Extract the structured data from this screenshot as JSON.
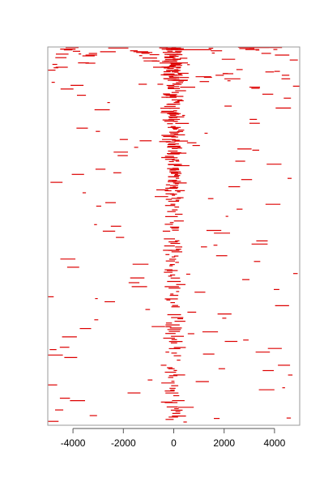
{
  "chart_data": {
    "type": "segment-heatmap",
    "title": "",
    "xlabel": "",
    "ylabel": "",
    "xlim": [
      -5000,
      5000
    ],
    "ylim": [
      0,
      220
    ],
    "xticks": [
      -4000,
      -2000,
      0,
      2000,
      4000
    ],
    "xtick_labels": [
      "-4000",
      "-2000",
      "0",
      "2000",
      "4000"
    ],
    "grid": false,
    "legend": "none",
    "row_count": 220,
    "central_peak": {
      "center": 0,
      "spread": 350
    },
    "segment_length_range": [
      100,
      1200
    ],
    "colors": {
      "segment": "#dd0000",
      "frame": "#9a9a9a",
      "axis": "#555555",
      "background": "#ffffff"
    }
  }
}
